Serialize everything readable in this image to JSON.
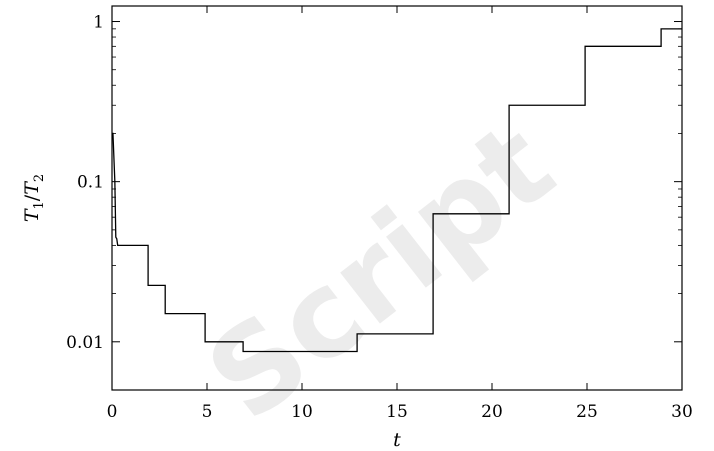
{
  "watermark": "Script",
  "chart_data": {
    "type": "line",
    "title": "",
    "xlabel": "t",
    "ylabel": "T1/T2",
    "ylabel_parts": {
      "t1": "T",
      "s1": "1",
      "slash": "/",
      "t2": "T",
      "s2": "2"
    },
    "xlim": [
      0,
      30
    ],
    "ylim": [
      0.005,
      1.25
    ],
    "yscale": "log",
    "grid": false,
    "x_ticks": [
      0,
      5,
      10,
      15,
      20,
      25,
      30
    ],
    "y_ticks": [
      0.01,
      0.1,
      1
    ],
    "x_tick_labels": [
      "0",
      "5",
      "10",
      "15",
      "20",
      "25",
      "30"
    ],
    "y_tick_labels": [
      "0.01",
      "0.1",
      "1"
    ],
    "series": [
      {
        "color": "#000000",
        "x": [
          0,
          0.05,
          0.15,
          0.2,
          0.25,
          0.3,
          0.35,
          1.9,
          1.9,
          2.8,
          2.8,
          4.9,
          4.9,
          6.9,
          6.9,
          12.9,
          12.9,
          16.9,
          16.9,
          20.9,
          20.9,
          24.9,
          24.9,
          28.9,
          28.9,
          30
        ],
        "y": [
          0.2,
          0.2,
          0.1,
          0.045,
          0.044,
          0.04,
          0.04,
          0.04,
          0.0225,
          0.0225,
          0.015,
          0.015,
          0.01,
          0.01,
          0.0087,
          0.0087,
          0.0112,
          0.0112,
          0.063,
          0.063,
          0.3,
          0.3,
          0.7,
          0.7,
          0.9,
          0.9
        ]
      }
    ]
  }
}
